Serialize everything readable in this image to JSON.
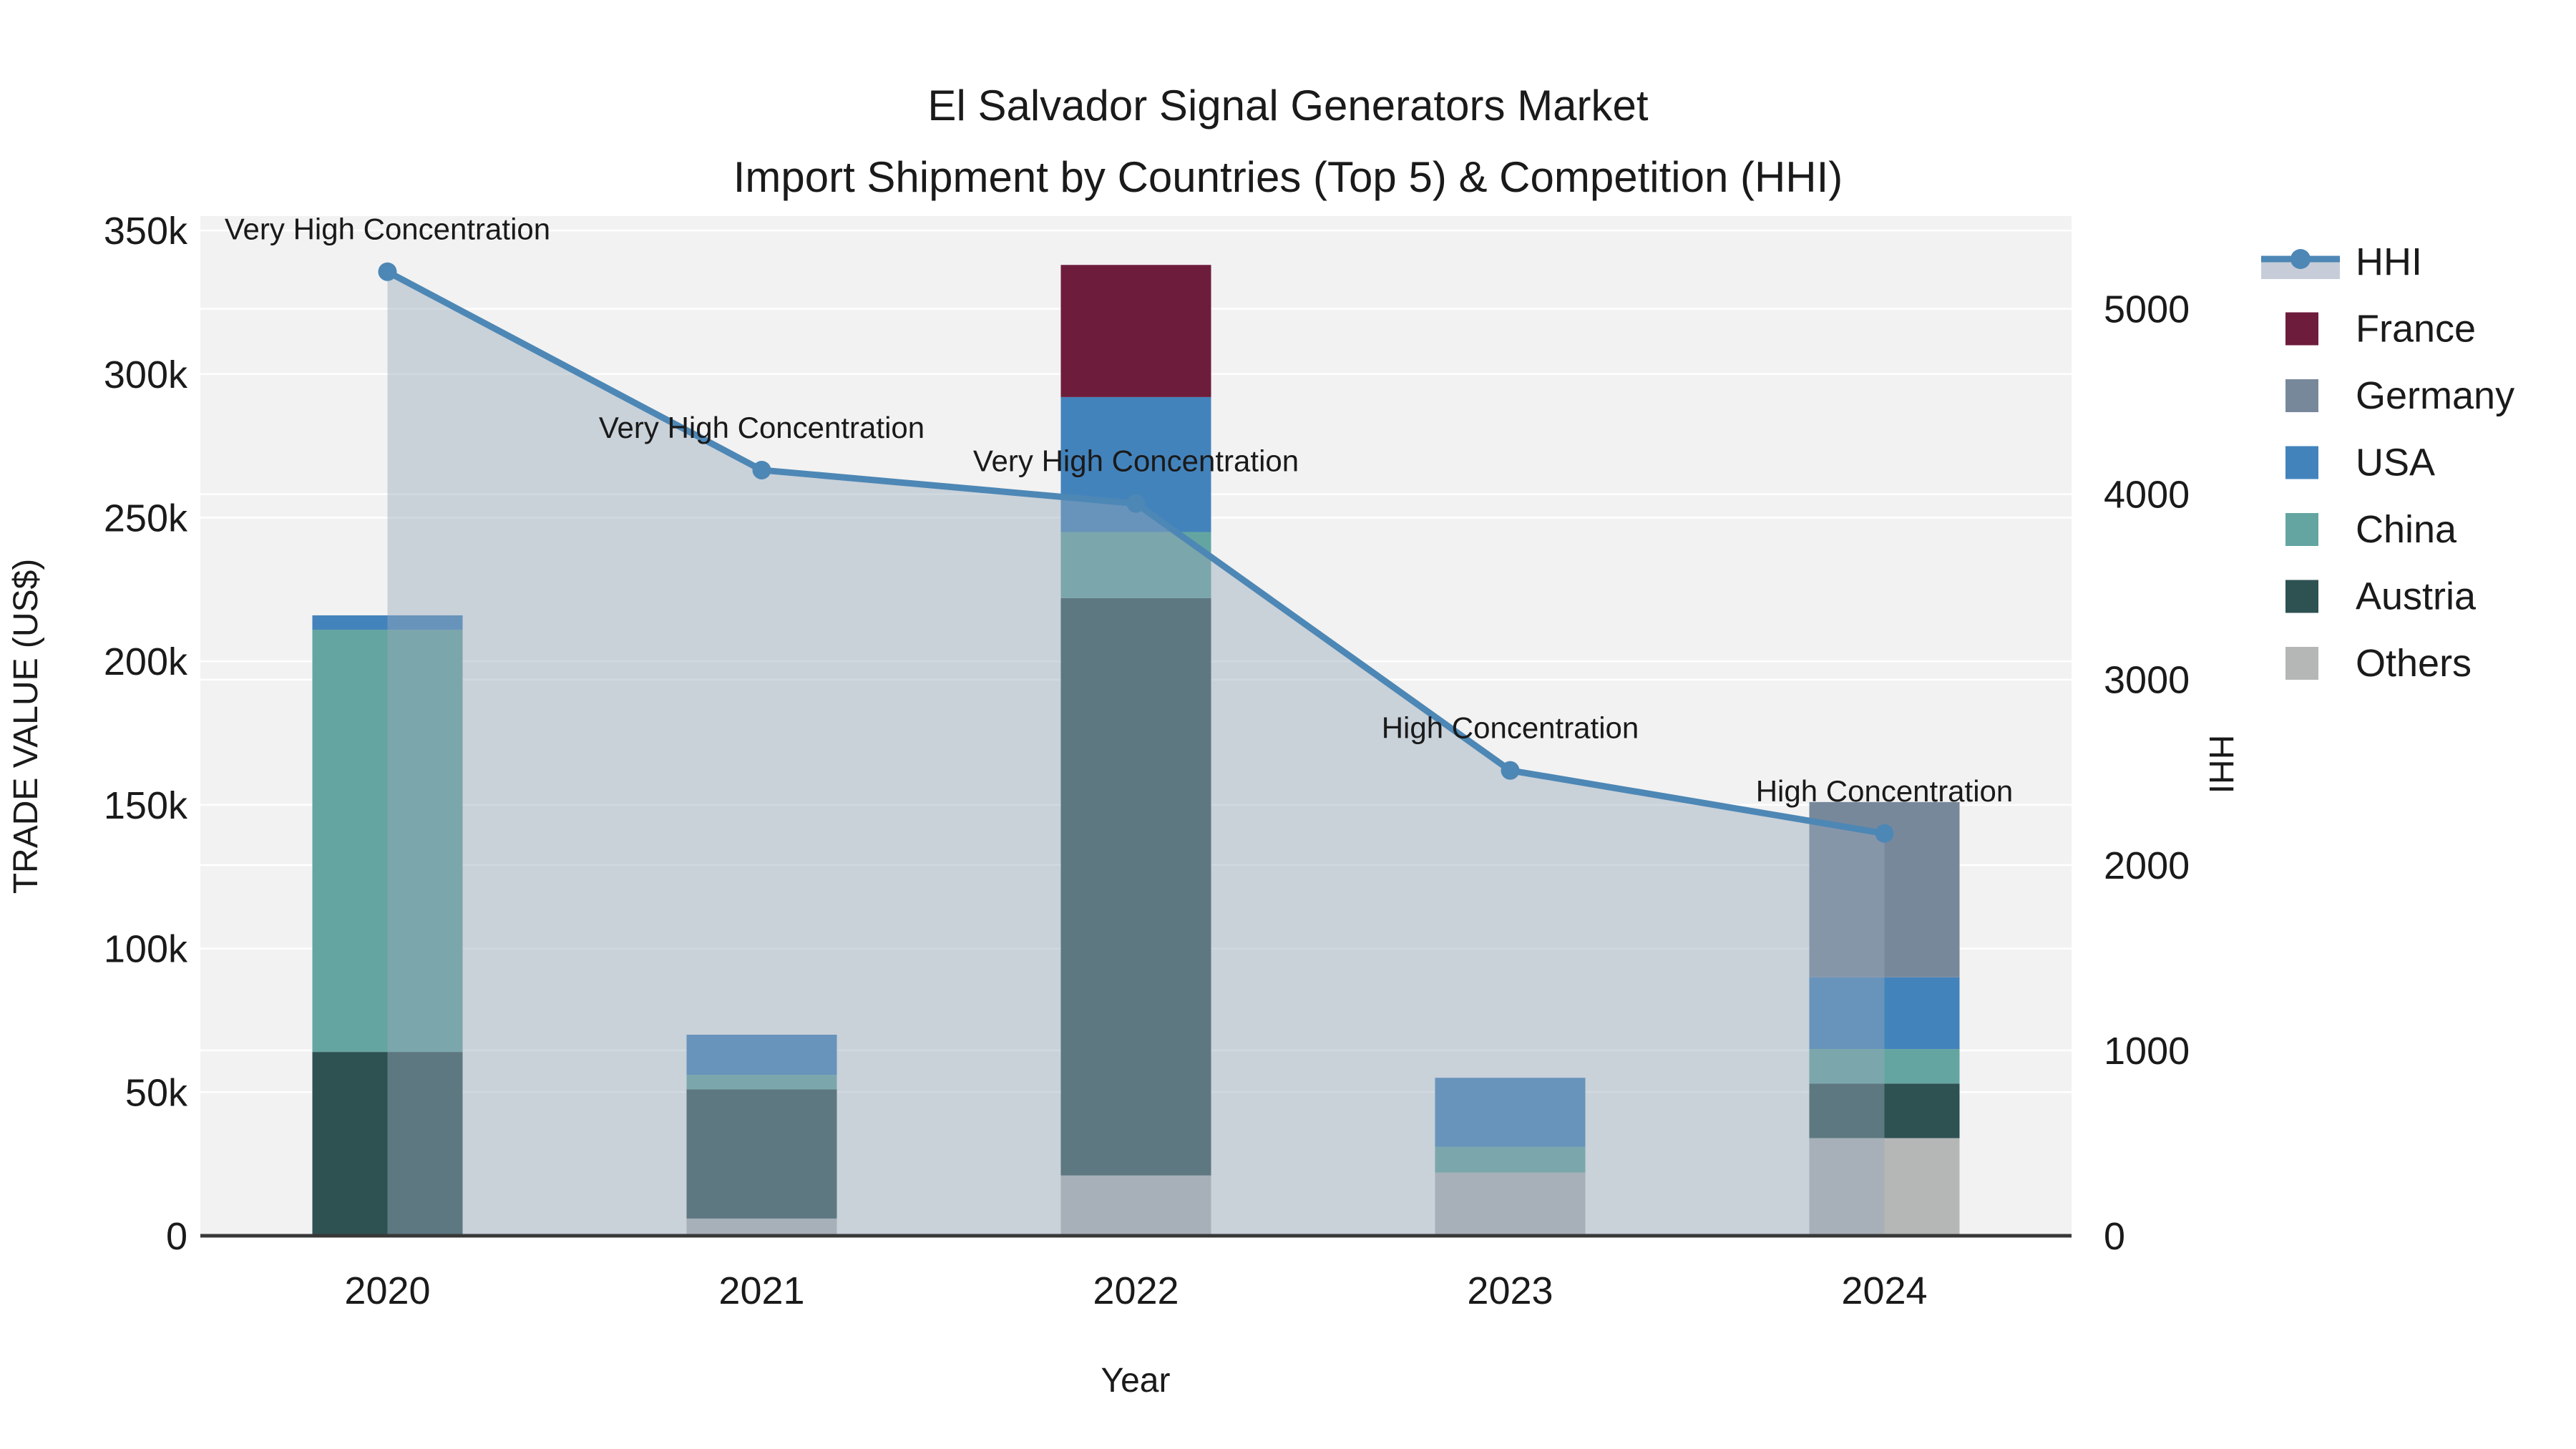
{
  "title": {
    "line1": "El Salvador Signal Generators Market",
    "line2": "Import Shipment by Countries (Top 5) & Competition (HHI)"
  },
  "axes": {
    "x_title": "Year",
    "y_left_title": "TRADE VALUE (US$)",
    "y_right_title": "HHI",
    "y_left_ticks": [
      {
        "v": 0,
        "label": "0"
      },
      {
        "v": 50000,
        "label": "50k"
      },
      {
        "v": 100000,
        "label": "100k"
      },
      {
        "v": 150000,
        "label": "150k"
      },
      {
        "v": 200000,
        "label": "200k"
      },
      {
        "v": 250000,
        "label": "250k"
      },
      {
        "v": 300000,
        "label": "300k"
      },
      {
        "v": 350000,
        "label": "350k"
      }
    ],
    "y_right_ticks": [
      {
        "v": 0,
        "label": "0"
      },
      {
        "v": 1000,
        "label": "1000"
      },
      {
        "v": 2000,
        "label": "2000"
      },
      {
        "v": 3000,
        "label": "3000"
      },
      {
        "v": 4000,
        "label": "4000"
      },
      {
        "v": 5000,
        "label": "5000"
      }
    ],
    "y_left_max": 355000,
    "y_right_max": 5500
  },
  "legend": {
    "items": [
      {
        "label": "HHI",
        "type": "line"
      },
      {
        "label": "France",
        "type": "swatch"
      },
      {
        "label": "Germany",
        "type": "swatch"
      },
      {
        "label": "USA",
        "type": "swatch"
      },
      {
        "label": "China",
        "type": "swatch"
      },
      {
        "label": "Austria",
        "type": "swatch"
      },
      {
        "label": "Others",
        "type": "swatch"
      }
    ]
  },
  "colors": {
    "France": "#6e1c3c",
    "Germany": "#78889b",
    "USA": "#4383bc",
    "China": "#64a5a1",
    "Austria": "#2e5152",
    "Others": "#b5b7b7",
    "hhi_line": "#4d87b5",
    "area_fill": "rgba(151,168,186,0.45)",
    "plot_bg": "#f2f2f2",
    "grid": "#ffffff",
    "axis_line": "#383838"
  },
  "chart_data": {
    "type": "combo (stacked bar + line with area fill)",
    "categories": [
      "2020",
      "2021",
      "2022",
      "2023",
      "2024"
    ],
    "bar_unit": "US$",
    "stack_order_bottom_to_top": [
      "Others",
      "Austria",
      "China",
      "USA",
      "Germany",
      "France"
    ],
    "series": [
      {
        "name": "Others",
        "values": [
          0,
          6000,
          21000,
          22000,
          34000
        ]
      },
      {
        "name": "Austria",
        "values": [
          64000,
          45000,
          201000,
          0,
          19000
        ]
      },
      {
        "name": "China",
        "values": [
          147000,
          5000,
          23000,
          9000,
          12000
        ]
      },
      {
        "name": "USA",
        "values": [
          5000,
          14000,
          47000,
          24000,
          25000
        ]
      },
      {
        "name": "Germany",
        "values": [
          0,
          0,
          0,
          0,
          61000
        ]
      },
      {
        "name": "France",
        "values": [
          0,
          0,
          46000,
          0,
          0
        ]
      }
    ],
    "bar_totals": [
      216000,
      70000,
      338000,
      55000,
      151000
    ],
    "hhi_series": {
      "name": "HHI",
      "values": [
        5200,
        4130,
        3950,
        2510,
        2170
      ],
      "axis": "right"
    },
    "annotations": [
      {
        "x": "2020",
        "text": "Very High Concentration"
      },
      {
        "x": "2021",
        "text": "Very High Concentration"
      },
      {
        "x": "2022",
        "text": "Very High Concentration"
      },
      {
        "x": "2023",
        "text": "High Concentration"
      },
      {
        "x": "2024",
        "text": "High Concentration"
      }
    ],
    "xlabel": "Year",
    "ylabel_left": "TRADE VALUE (US$)",
    "ylabel_right": "HHI",
    "ylim_left": [
      0,
      355000
    ],
    "ylim_right": [
      0,
      5500
    ],
    "grid": true,
    "legend_position": "top-right outside plot"
  }
}
